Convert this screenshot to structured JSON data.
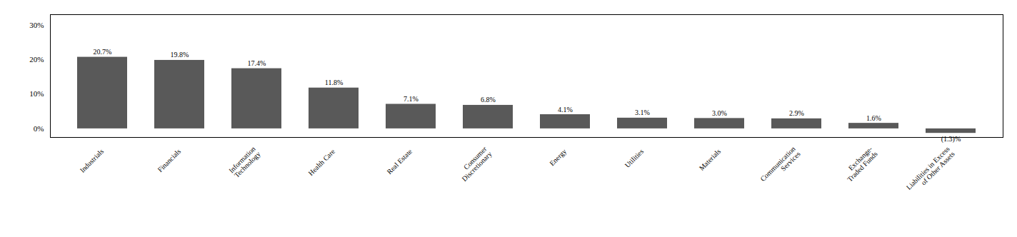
{
  "chart_data": {
    "type": "bar",
    "categories": [
      "Industrials",
      "Financials",
      "Information\nTechnology",
      "Health Care",
      "Real Estate",
      "Consumer\nDiscretionary",
      "Energy",
      "Utilities",
      "Materials",
      "Communication\nServices",
      "Exchange-\nTraded Funds",
      "Liabilities in Excess\nof Other Assets"
    ],
    "values": [
      20.7,
      19.8,
      17.4,
      11.8,
      7.1,
      6.8,
      4.1,
      3.1,
      3.0,
      2.9,
      1.6,
      -1.3
    ],
    "value_labels": [
      "20.7%",
      "19.8%",
      "17.4%",
      "11.8%",
      "7.1%",
      "6.8%",
      "4.1%",
      "3.1%",
      "3.0%",
      "2.9%",
      "1.6%",
      "(1.3)%"
    ],
    "color": "#595959",
    "ylim": [
      -2.5,
      33
    ],
    "yticks": [
      {
        "value": 0,
        "label": "0%"
      },
      {
        "value": 10,
        "label": "10%"
      },
      {
        "value": 20,
        "label": "20%"
      },
      {
        "value": 30,
        "label": "30%"
      }
    ],
    "grid": true,
    "data_labels": true
  }
}
